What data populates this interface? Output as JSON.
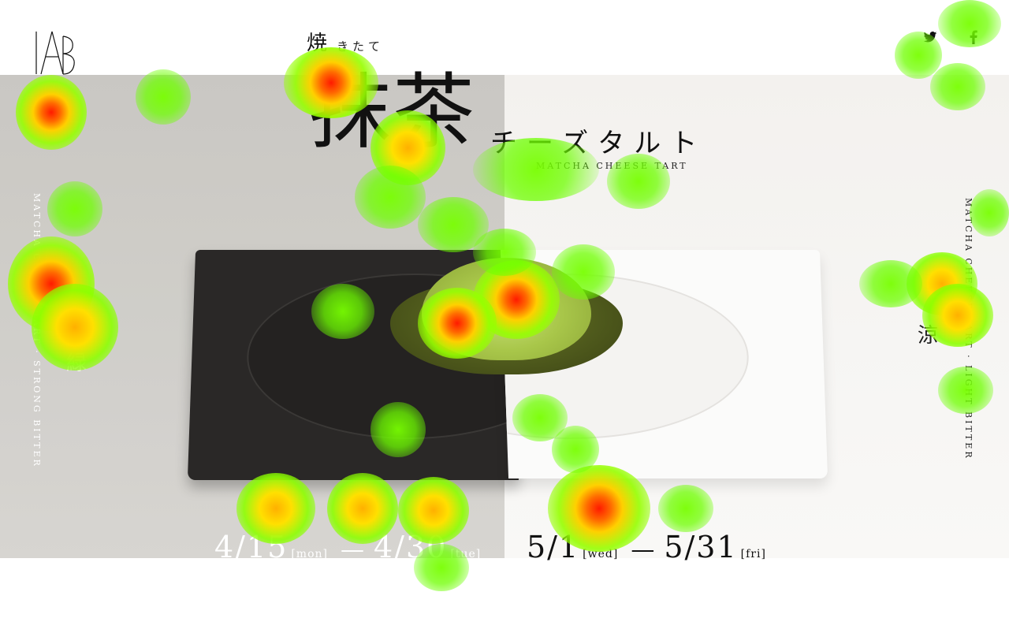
{
  "header": {
    "logo_alt": "AB",
    "social": [
      "twitter-icon",
      "facebook-icon"
    ]
  },
  "title": {
    "yaki": "焼",
    "kitate": "きたて",
    "matcha": "抹茶",
    "katakana": "チーズタルト",
    "english": "MATCHA CHEESE TART"
  },
  "side": {
    "left_vertical": "MATCHA CHEESE TART · STRONG BITTER",
    "left_kanji": "緑",
    "right_vertical": "MATCHA CHEESE TART · LIGHT BITTER",
    "right_kanji": "涼"
  },
  "dates": {
    "left": {
      "start": "4/15",
      "start_day": "[mon]",
      "dash": "—",
      "end": "4/30",
      "end_day": "[tue]"
    },
    "right": {
      "start": "5/1",
      "start_day": "[wed]",
      "dash": "—",
      "end": "5/31",
      "end_day": "[fri]"
    }
  },
  "colors": {
    "left_bg": "#dcdad6",
    "right_bg": "#f3f1ee",
    "tart_green": "#a9c74a"
  }
}
